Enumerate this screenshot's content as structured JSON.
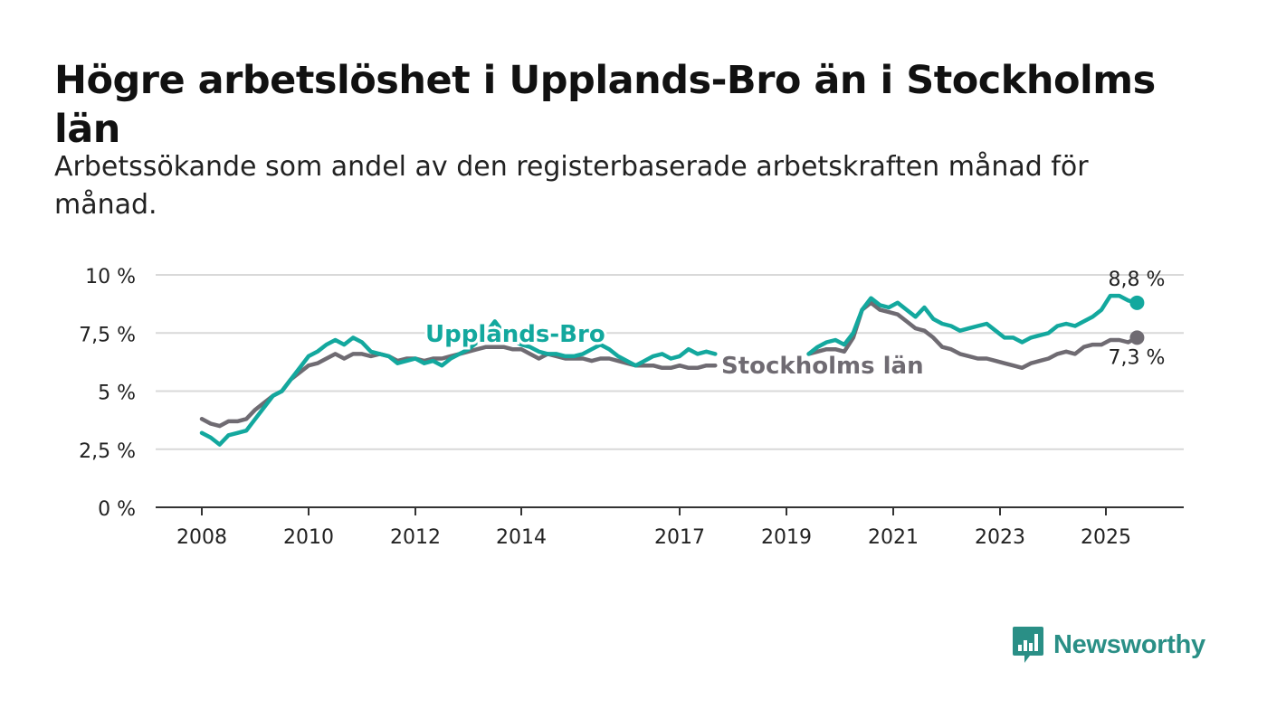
{
  "header": {
    "title": "Högre arbetslöshet i Upplands-Bro än i Stockholms län",
    "subtitle": "Arbetssökande som andel av den registerbaserade arbetskraften månad för månad."
  },
  "brand": {
    "name": "Newsworthy",
    "icon": "newsworthy-logo-icon",
    "color": "#2a8f86"
  },
  "chart_data": {
    "type": "line",
    "x_label": "",
    "y_label": "",
    "ylim": [
      0,
      10
    ],
    "y_ticks": [
      0,
      2.5,
      5,
      7.5,
      10
    ],
    "y_tick_labels": [
      "0 %",
      "2,5 %",
      "5 %",
      "7,5 %",
      "10 %"
    ],
    "x_ticks": [
      2008,
      2010,
      2012,
      2014,
      2017,
      2019,
      2021,
      2023,
      2025
    ],
    "x_tick_labels": [
      "2008",
      "2010",
      "2012",
      "2014",
      "2017",
      "2019",
      "2021",
      "2023",
      "2025"
    ],
    "grid": true,
    "series": [
      {
        "name": "Upplands-Bro",
        "color": "#13a89e",
        "end_label": "8,8 %",
        "points": [
          [
            "2008-01",
            3.2
          ],
          [
            "2008-03",
            3.0
          ],
          [
            "2008-05",
            2.7
          ],
          [
            "2008-07",
            3.1
          ],
          [
            "2008-09",
            3.2
          ],
          [
            "2008-11",
            3.3
          ],
          [
            "2009-01",
            3.8
          ],
          [
            "2009-03",
            4.3
          ],
          [
            "2009-05",
            4.8
          ],
          [
            "2009-07",
            5.0
          ],
          [
            "2009-09",
            5.5
          ],
          [
            "2009-11",
            6.0
          ],
          [
            "2010-01",
            6.5
          ],
          [
            "2010-03",
            6.7
          ],
          [
            "2010-05",
            7.0
          ],
          [
            "2010-07",
            7.2
          ],
          [
            "2010-09",
            7.0
          ],
          [
            "2010-11",
            7.3
          ],
          [
            "2011-01",
            7.1
          ],
          [
            "2011-03",
            6.7
          ],
          [
            "2011-05",
            6.6
          ],
          [
            "2011-07",
            6.5
          ],
          [
            "2011-09",
            6.2
          ],
          [
            "2011-11",
            6.3
          ],
          [
            "2012-01",
            6.4
          ],
          [
            "2012-03",
            6.2
          ],
          [
            "2012-05",
            6.3
          ],
          [
            "2012-07",
            6.1
          ],
          [
            "2012-09",
            6.4
          ],
          [
            "2012-11",
            6.6
          ],
          [
            "2013-01",
            6.8
          ],
          [
            "2013-03",
            7.1
          ],
          [
            "2013-05",
            7.5
          ],
          [
            "2013-07",
            8.0
          ],
          [
            "2013-09",
            7.5
          ],
          [
            "2013-11",
            7.2
          ],
          [
            "2014-01",
            7.0
          ],
          [
            "2014-03",
            6.9
          ],
          [
            "2014-05",
            6.7
          ],
          [
            "2014-07",
            6.6
          ],
          [
            "2014-09",
            6.6
          ],
          [
            "2014-11",
            6.5
          ],
          [
            "2015-01",
            6.5
          ],
          [
            "2015-03",
            6.6
          ],
          [
            "2015-05",
            6.8
          ],
          [
            "2015-07",
            7.0
          ],
          [
            "2015-09",
            6.8
          ],
          [
            "2015-11",
            6.5
          ],
          [
            "2016-01",
            6.3
          ],
          [
            "2016-03",
            6.1
          ],
          [
            "2016-05",
            6.3
          ],
          [
            "2016-07",
            6.5
          ],
          [
            "2016-09",
            6.6
          ],
          [
            "2016-11",
            6.4
          ],
          [
            "2017-01",
            6.5
          ],
          [
            "2017-03",
            6.8
          ],
          [
            "2017-05",
            6.6
          ],
          [
            "2017-07",
            6.7
          ],
          [
            "2017-09",
            6.6
          ],
          null,
          [
            "2019-06",
            6.6
          ],
          [
            "2019-08",
            6.9
          ],
          [
            "2019-10",
            7.1
          ],
          [
            "2019-12",
            7.2
          ],
          [
            "2020-02",
            7.0
          ],
          [
            "2020-04",
            7.5
          ],
          [
            "2020-06",
            8.5
          ],
          [
            "2020-08",
            9.0
          ],
          [
            "2020-10",
            8.7
          ],
          [
            "2020-12",
            8.6
          ],
          [
            "2021-02",
            8.8
          ],
          [
            "2021-04",
            8.5
          ],
          [
            "2021-06",
            8.2
          ],
          [
            "2021-08",
            8.6
          ],
          [
            "2021-10",
            8.1
          ],
          [
            "2021-12",
            7.9
          ],
          [
            "2022-02",
            7.8
          ],
          [
            "2022-04",
            7.6
          ],
          [
            "2022-06",
            7.7
          ],
          [
            "2022-08",
            7.8
          ],
          [
            "2022-10",
            7.9
          ],
          [
            "2022-12",
            7.6
          ],
          [
            "2023-02",
            7.3
          ],
          [
            "2023-04",
            7.3
          ],
          [
            "2023-06",
            7.1
          ],
          [
            "2023-08",
            7.3
          ],
          [
            "2023-10",
            7.4
          ],
          [
            "2023-12",
            7.5
          ],
          [
            "2024-02",
            7.8
          ],
          [
            "2024-04",
            7.9
          ],
          [
            "2024-06",
            7.8
          ],
          [
            "2024-08",
            8.0
          ],
          [
            "2024-10",
            8.2
          ],
          [
            "2024-12",
            8.5
          ],
          [
            "2025-02",
            9.1
          ],
          [
            "2025-04",
            9.1
          ],
          [
            "2025-06",
            8.9
          ],
          [
            "2025-08",
            8.8
          ]
        ]
      },
      {
        "name": "Stockholms län",
        "color": "#6f6b72",
        "end_label": "7,3 %",
        "points": [
          [
            "2008-01",
            3.8
          ],
          [
            "2008-03",
            3.6
          ],
          [
            "2008-05",
            3.5
          ],
          [
            "2008-07",
            3.7
          ],
          [
            "2008-09",
            3.7
          ],
          [
            "2008-11",
            3.8
          ],
          [
            "2009-01",
            4.2
          ],
          [
            "2009-03",
            4.5
          ],
          [
            "2009-05",
            4.8
          ],
          [
            "2009-07",
            5.0
          ],
          [
            "2009-09",
            5.5
          ],
          [
            "2009-11",
            5.8
          ],
          [
            "2010-01",
            6.1
          ],
          [
            "2010-03",
            6.2
          ],
          [
            "2010-05",
            6.4
          ],
          [
            "2010-07",
            6.6
          ],
          [
            "2010-09",
            6.4
          ],
          [
            "2010-11",
            6.6
          ],
          [
            "2011-01",
            6.6
          ],
          [
            "2011-03",
            6.5
          ],
          [
            "2011-05",
            6.6
          ],
          [
            "2011-07",
            6.5
          ],
          [
            "2011-09",
            6.3
          ],
          [
            "2011-11",
            6.4
          ],
          [
            "2012-01",
            6.4
          ],
          [
            "2012-03",
            6.3
          ],
          [
            "2012-05",
            6.4
          ],
          [
            "2012-07",
            6.4
          ],
          [
            "2012-09",
            6.5
          ],
          [
            "2012-11",
            6.6
          ],
          [
            "2013-01",
            6.7
          ],
          [
            "2013-03",
            6.8
          ],
          [
            "2013-05",
            6.9
          ],
          [
            "2013-07",
            6.9
          ],
          [
            "2013-09",
            6.9
          ],
          [
            "2013-11",
            6.8
          ],
          [
            "2014-01",
            6.8
          ],
          [
            "2014-03",
            6.6
          ],
          [
            "2014-05",
            6.4
          ],
          [
            "2014-07",
            6.6
          ],
          [
            "2014-09",
            6.5
          ],
          [
            "2014-11",
            6.4
          ],
          [
            "2015-01",
            6.4
          ],
          [
            "2015-03",
            6.4
          ],
          [
            "2015-05",
            6.3
          ],
          [
            "2015-07",
            6.4
          ],
          [
            "2015-09",
            6.4
          ],
          [
            "2015-11",
            6.3
          ],
          [
            "2016-01",
            6.2
          ],
          [
            "2016-03",
            6.1
          ],
          [
            "2016-05",
            6.1
          ],
          [
            "2016-07",
            6.1
          ],
          [
            "2016-09",
            6.0
          ],
          [
            "2016-11",
            6.0
          ],
          [
            "2017-01",
            6.1
          ],
          [
            "2017-03",
            6.0
          ],
          [
            "2017-05",
            6.0
          ],
          [
            "2017-07",
            6.1
          ],
          [
            "2017-09",
            6.1
          ],
          null,
          [
            "2019-06",
            6.6
          ],
          [
            "2019-08",
            6.7
          ],
          [
            "2019-10",
            6.8
          ],
          [
            "2019-12",
            6.8
          ],
          [
            "2020-02",
            6.7
          ],
          [
            "2020-04",
            7.3
          ],
          [
            "2020-06",
            8.5
          ],
          [
            "2020-08",
            8.8
          ],
          [
            "2020-10",
            8.5
          ],
          [
            "2020-12",
            8.4
          ],
          [
            "2021-02",
            8.3
          ],
          [
            "2021-04",
            8.0
          ],
          [
            "2021-06",
            7.7
          ],
          [
            "2021-08",
            7.6
          ],
          [
            "2021-10",
            7.3
          ],
          [
            "2021-12",
            6.9
          ],
          [
            "2022-02",
            6.8
          ],
          [
            "2022-04",
            6.6
          ],
          [
            "2022-06",
            6.5
          ],
          [
            "2022-08",
            6.4
          ],
          [
            "2022-10",
            6.4
          ],
          [
            "2022-12",
            6.3
          ],
          [
            "2023-02",
            6.2
          ],
          [
            "2023-04",
            6.1
          ],
          [
            "2023-06",
            6.0
          ],
          [
            "2023-08",
            6.2
          ],
          [
            "2023-10",
            6.3
          ],
          [
            "2023-12",
            6.4
          ],
          [
            "2024-02",
            6.6
          ],
          [
            "2024-04",
            6.7
          ],
          [
            "2024-06",
            6.6
          ],
          [
            "2024-08",
            6.9
          ],
          [
            "2024-10",
            7.0
          ],
          [
            "2024-12",
            7.0
          ],
          [
            "2025-02",
            7.2
          ],
          [
            "2025-04",
            7.2
          ],
          [
            "2025-06",
            7.1
          ],
          [
            "2025-08",
            7.3
          ]
        ]
      }
    ]
  }
}
